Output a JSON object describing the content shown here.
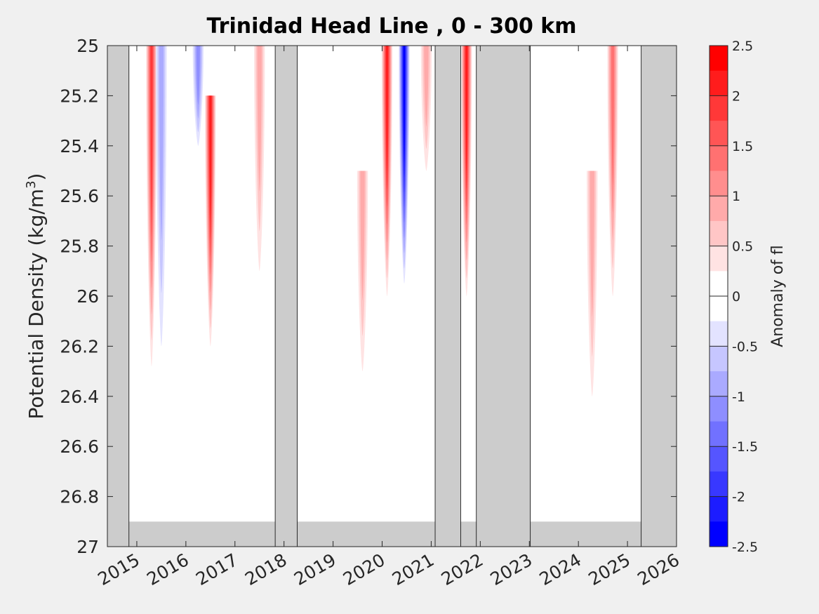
{
  "chart_data": {
    "type": "heatmap",
    "title": "Trinidad Head Line , 0 - 300 km",
    "ylabel_main": "Potential Density (kg/m",
    "ylabel_sup": "3",
    "ylabel_close": ")",
    "colorbar_label": "Anomaly of fl",
    "xlim": [
      2014.4,
      2026
    ],
    "ylim": [
      25,
      27
    ],
    "y_reversed": true,
    "x_ticks": [
      2015,
      2016,
      2017,
      2018,
      2019,
      2020,
      2021,
      2022,
      2023,
      2024,
      2025,
      2026
    ],
    "x_tick_labels": [
      "2015",
      "2016",
      "2017",
      "2018",
      "2019",
      "2020",
      "2021",
      "2022",
      "2023",
      "2024",
      "2025",
      "2026"
    ],
    "y_ticks": [
      25,
      25.2,
      25.4,
      25.6,
      25.8,
      26,
      26.2,
      26.4,
      26.6,
      26.8,
      27
    ],
    "y_tick_labels": [
      "25",
      "25.2",
      "25.4",
      "25.6",
      "25.8",
      "26",
      "26.2",
      "26.4",
      "26.6",
      "26.8",
      "27"
    ],
    "colorbar": {
      "range": [
        -2.5,
        2.5
      ],
      "tick_values": [
        2.5,
        2,
        1.5,
        1,
        0.5,
        0,
        -0.5,
        -1,
        -1.5,
        -2,
        -2.5
      ],
      "tick_labels": [
        "2.5",
        "2",
        "1.5",
        "1",
        "0.5",
        "0",
        "-0.5",
        "-1",
        "-1.5",
        "-2",
        "-2.5"
      ],
      "levels_top_to_bottom": [
        "#ff0000",
        "#ff1c1c",
        "#ff3838",
        "#ff5555",
        "#ff7171",
        "#ff8e8e",
        "#ffaaaa",
        "#ffc6c6",
        "#ffe3e3",
        "#ffffff",
        "#ffffff",
        "#e3e3ff",
        "#c6c6ff",
        "#aaaaff",
        "#8e8eff",
        "#7171ff",
        "#5555ff",
        "#3838ff",
        "#1c1cff",
        "#0000ff"
      ]
    },
    "no_data_color": "#cccccc",
    "no_data_periods": [
      {
        "x0": 2014.4,
        "x1": 2014.84
      },
      {
        "x0": 2017.82,
        "x1": 2018.27
      },
      {
        "x0": 2021.08,
        "x1": 2021.6
      },
      {
        "x0": 2021.92,
        "x1": 2023.02
      },
      {
        "x0": 2025.28,
        "x1": 2026
      }
    ],
    "bottom_no_data_band": [
      26.9,
      27
    ],
    "anomalies": [
      {
        "x": 2015.3,
        "y_top": 25.0,
        "y_bottom": 26.28,
        "peak": 1.6
      },
      {
        "x": 2015.5,
        "y_top": 25.0,
        "y_bottom": 26.2,
        "peak": -0.6
      },
      {
        "x": 2016.25,
        "y_top": 25.0,
        "y_bottom": 25.4,
        "peak": -1.0
      },
      {
        "x": 2016.5,
        "y_top": 25.2,
        "y_bottom": 26.2,
        "peak": 2.0
      },
      {
        "x": 2017.5,
        "y_top": 25.0,
        "y_bottom": 25.9,
        "peak": 0.6
      },
      {
        "x": 2019.6,
        "y_top": 25.5,
        "y_bottom": 26.3,
        "peak": 0.6
      },
      {
        "x": 2020.1,
        "y_top": 25.0,
        "y_bottom": 26.0,
        "peak": 2.0
      },
      {
        "x": 2020.45,
        "y_top": 25.0,
        "y_bottom": 25.95,
        "peak": -2.2
      },
      {
        "x": 2020.9,
        "y_top": 25.0,
        "y_bottom": 25.5,
        "peak": 0.6
      },
      {
        "x": 2021.72,
        "y_top": 25.0,
        "y_bottom": 26.0,
        "peak": 2.0
      },
      {
        "x": 2024.7,
        "y_top": 25.0,
        "y_bottom": 26.0,
        "peak": 1.2
      },
      {
        "x": 2024.28,
        "y_top": 25.5,
        "y_bottom": 26.4,
        "peak": 0.6
      }
    ]
  }
}
